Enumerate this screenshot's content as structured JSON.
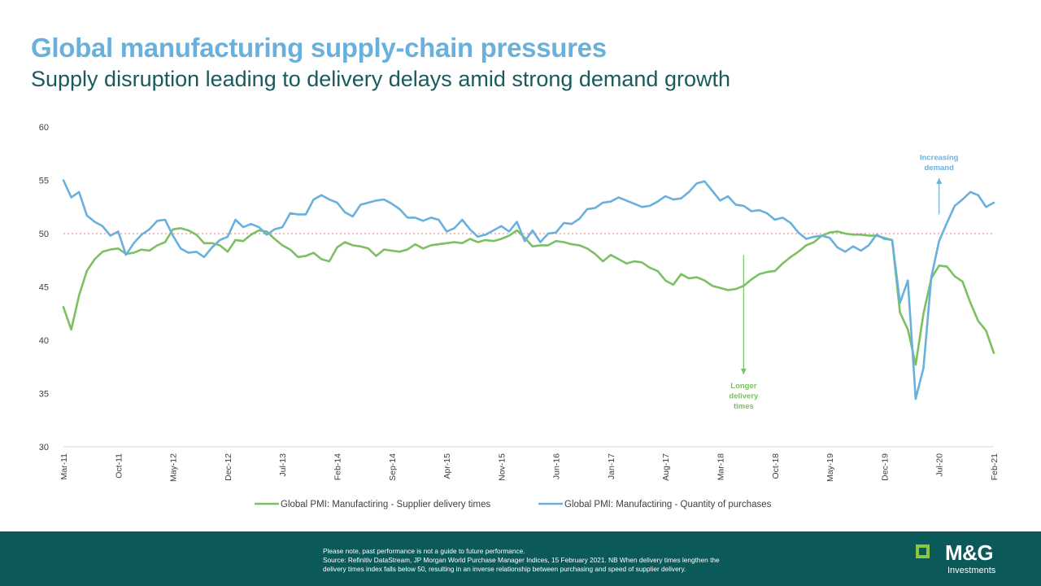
{
  "header": {
    "title": "Global manufacturing supply-chain pressures",
    "subtitle": "Supply disruption leading to delivery delays amid strong demand growth"
  },
  "chart_data": {
    "type": "line",
    "title": "",
    "xlabel": "",
    "ylabel": "",
    "ylim": [
      30,
      60
    ],
    "yticks": [
      30,
      35,
      40,
      45,
      50,
      55,
      60
    ],
    "x_tick_labels": [
      "Mar-11",
      "Oct-11",
      "May-12",
      "Dec-12",
      "Jul-13",
      "Feb-14",
      "Sep-14",
      "Apr-15",
      "Nov-15",
      "Jun-16",
      "Jan-17",
      "Aug-17",
      "Mar-18",
      "Oct-18",
      "May-19",
      "Dec-19",
      "Jul-20",
      "Feb-21"
    ],
    "x_start": "Mar-11",
    "x_end": "Feb-21",
    "reference_line": {
      "value": 50,
      "color": "#f4a6a0",
      "style": "dotted"
    },
    "grid": false,
    "legend_position": "bottom",
    "series": [
      {
        "name": "Global PMI: Manufactiring - Supplier delivery times",
        "color": "#7cc063",
        "values": [
          43.1,
          41.0,
          44.2,
          46.5,
          47.6,
          48.3,
          48.5,
          48.6,
          48.1,
          48.2,
          48.5,
          48.4,
          48.9,
          49.2,
          50.4,
          50.5,
          50.3,
          49.9,
          49.1,
          49.1,
          48.9,
          48.3,
          49.4,
          49.3,
          49.9,
          50.3,
          50.2,
          49.5,
          48.9,
          48.5,
          47.8,
          47.9,
          48.2,
          47.6,
          47.4,
          48.7,
          49.2,
          48.9,
          48.8,
          48.6,
          47.9,
          48.5,
          48.4,
          48.3,
          48.5,
          49.0,
          48.6,
          48.9,
          49.0,
          49.1,
          49.2,
          49.1,
          49.5,
          49.2,
          49.4,
          49.3,
          49.5,
          49.8,
          50.3,
          49.6,
          48.8,
          48.9,
          48.9,
          49.3,
          49.2,
          49.0,
          48.9,
          48.6,
          48.1,
          47.4,
          48.0,
          47.6,
          47.2,
          47.4,
          47.3,
          46.8,
          46.5,
          45.6,
          45.2,
          46.2,
          45.8,
          45.9,
          45.6,
          45.1,
          44.9,
          44.7,
          44.8,
          45.1,
          45.7,
          46.2,
          46.4,
          46.5,
          47.2,
          47.8,
          48.3,
          48.9,
          49.2,
          49.8,
          50.1,
          50.2,
          50.0,
          49.9,
          49.9,
          49.8,
          49.8,
          49.6,
          49.4,
          42.6,
          41.0,
          37.7,
          42.5,
          45.8,
          47.0,
          46.9,
          46.0,
          45.5,
          43.5,
          41.8,
          40.9,
          38.8
        ]
      },
      {
        "name": "Global PMI: Manufactiring - Quantity of purchases",
        "color": "#6ab0dd",
        "values": [
          55.0,
          53.4,
          53.9,
          51.7,
          51.1,
          50.7,
          49.8,
          50.2,
          48.0,
          49.1,
          49.9,
          50.4,
          51.2,
          51.3,
          49.8,
          48.6,
          48.2,
          48.3,
          47.8,
          48.7,
          49.4,
          49.7,
          51.3,
          50.6,
          50.9,
          50.6,
          49.9,
          50.4,
          50.6,
          51.9,
          51.8,
          51.8,
          53.2,
          53.6,
          53.2,
          52.9,
          52.0,
          51.6,
          52.7,
          52.9,
          53.1,
          53.2,
          52.8,
          52.3,
          51.5,
          51.5,
          51.2,
          51.5,
          51.3,
          50.2,
          50.5,
          51.3,
          50.4,
          49.7,
          49.9,
          50.3,
          50.7,
          50.2,
          51.1,
          49.3,
          50.3,
          49.2,
          50.0,
          50.1,
          51.0,
          50.9,
          51.4,
          52.3,
          52.4,
          52.9,
          53.0,
          53.4,
          53.1,
          52.8,
          52.5,
          52.6,
          53.0,
          53.5,
          53.2,
          53.3,
          53.9,
          54.7,
          54.9,
          54.0,
          53.1,
          53.5,
          52.7,
          52.6,
          52.1,
          52.2,
          51.9,
          51.3,
          51.5,
          51.0,
          50.1,
          49.5,
          49.7,
          49.8,
          49.6,
          48.7,
          48.3,
          48.8,
          48.4,
          48.9,
          49.9,
          49.5,
          49.4,
          43.5,
          45.6,
          34.5,
          37.4,
          45.9,
          49.3,
          51.0,
          52.6,
          53.2,
          53.9,
          53.6,
          52.5,
          52.9
        ]
      }
    ],
    "annotations": [
      {
        "text": [
          "Longer",
          "delivery",
          "times"
        ],
        "color": "#7cc063",
        "x": "Jun-18",
        "y_arrow_start": 48,
        "y_arrow_end": 36.8,
        "arrow": "down"
      },
      {
        "text": [
          "Increasing",
          "demand"
        ],
        "color": "#6ab0dd",
        "x": "Jul-20",
        "y_arrow_start": 51.8,
        "y_arrow_end": 55.2,
        "arrow": "up"
      }
    ]
  },
  "footer": {
    "disclaimer_lines": [
      "Please note, past performance is not a guide to future performance.",
      "Source: Refinitiv DataStream, JP Morgan World Purchase Manager Indices, 15 February 2021. NB When delivery times lengthen the",
      "delivery times index falls below 50, resulting in an inverse relationship between purchasing and speed of supplier delivery."
    ]
  },
  "logo": {
    "name": "M&G",
    "tagline": "Investments"
  },
  "colors": {
    "title": "#6ab0dd",
    "subtitle": "#1a5a5c",
    "footer_bg": "#0b5a59",
    "logo_accent": "#8dc63f"
  }
}
